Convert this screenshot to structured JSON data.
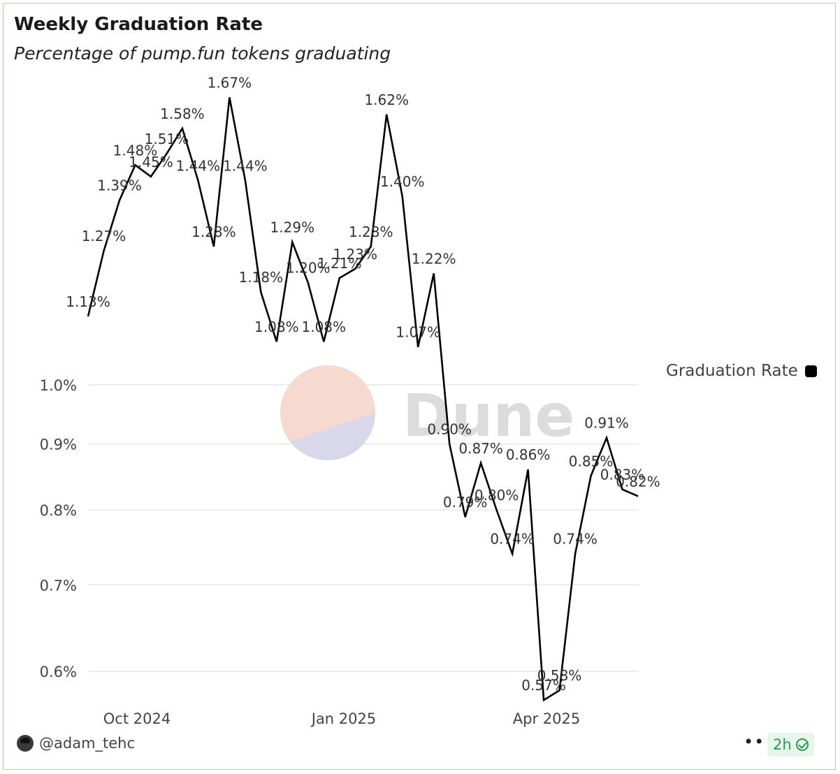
{
  "header": {
    "title": "Weekly Graduation Rate",
    "subtitle": "Percentage of pump.fun tokens graduating"
  },
  "chart_data": {
    "type": "line",
    "title": "Weekly Graduation Rate",
    "subtitle": "Percentage of pump.fun tokens graduating",
    "xlabel": "",
    "ylabel": "",
    "x_tick_labels": [
      "Oct 2024",
      "Jan 2025",
      "Apr 2025"
    ],
    "y_ticks": [
      0.6,
      0.7,
      0.8,
      0.9,
      1.0
    ],
    "y_tick_labels": [
      "0.6%",
      "0.7%",
      "0.8%",
      "0.9%",
      "1.0%"
    ],
    "y_scale": "log",
    "grid": true,
    "legend_position": "right",
    "series": [
      {
        "name": "Graduation Rate",
        "color": "#000000",
        "values": [
          1.13,
          1.27,
          1.39,
          1.48,
          1.45,
          1.51,
          1.58,
          1.44,
          1.28,
          1.67,
          1.44,
          1.18,
          1.08,
          1.29,
          1.2,
          1.08,
          1.21,
          1.23,
          1.28,
          1.62,
          1.4,
          1.07,
          1.22,
          0.9,
          0.79,
          0.87,
          0.8,
          0.74,
          0.86,
          0.57,
          0.58,
          0.74,
          0.85,
          0.91,
          0.83,
          0.82
        ],
        "labels": [
          "1.13%",
          "1.27%",
          "1.39%",
          "1.48%",
          "1.45%",
          "1.51%",
          "1.58%",
          "1.44%",
          "1.28%",
          "1.67%",
          "1.44%",
          "1.18%",
          "1.08%",
          "1.29%",
          "1.20%",
          "1.08%",
          "1.21%",
          "1.23%",
          "1.28%",
          "1.62%",
          "1.40%",
          "1.07%",
          "1.22%",
          "0.90%",
          "0.79%",
          "0.87%",
          "0.80%",
          "0.74%",
          "0.86%",
          "0.57%",
          "0.58%",
          "0.74%",
          "0.85%",
          "0.91%",
          "0.83%",
          "0.82%"
        ]
      }
    ]
  },
  "watermark": {
    "text": "Dune",
    "logo_colors": [
      "#f6d9cf",
      "#d9d8ea"
    ]
  },
  "footer": {
    "author": "@adam_tehc",
    "more_label": "•••",
    "age_badge": "2h",
    "badge_color": "#2e9a4f"
  }
}
